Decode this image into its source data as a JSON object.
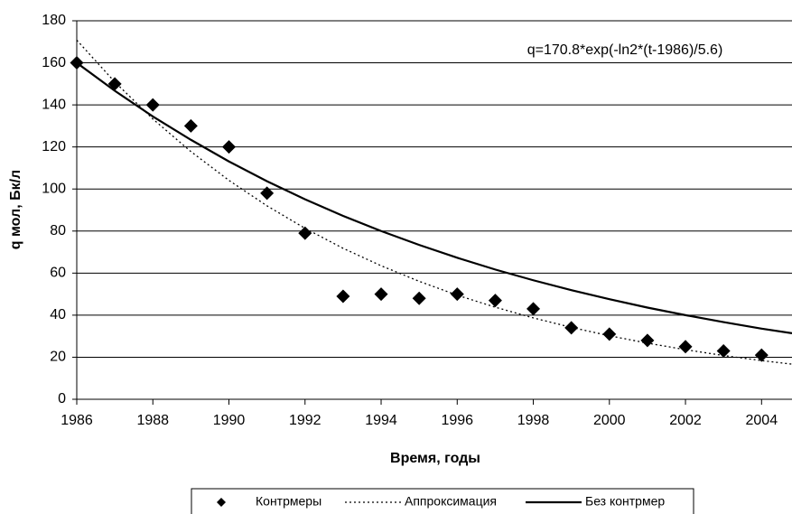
{
  "chart_data": {
    "type": "line",
    "annotation": "q=170.8*exp(-ln2*(t-1986)/5.6)",
    "x_label": "Время, годы",
    "y_label": "q мол, Бк/л",
    "xlim": [
      1986,
      2004.8
    ],
    "ylim": [
      0,
      180
    ],
    "xticks": [
      1986,
      1988,
      1990,
      1992,
      1994,
      1996,
      1998,
      2000,
      2002,
      2004
    ],
    "yticks": [
      0,
      20,
      40,
      60,
      80,
      100,
      120,
      140,
      160,
      180
    ],
    "grid": true,
    "legend": "bottom",
    "series": [
      {
        "name": "Контрмеры",
        "color": "#000000",
        "style": "marker",
        "x": [
          1986,
          1987,
          1988,
          1989,
          1990,
          1991,
          1992,
          1993,
          1994,
          1995,
          1996,
          1997,
          1998,
          1999,
          2000,
          2001,
          2002,
          2003,
          2004
        ],
        "values": [
          160,
          150,
          140,
          130,
          120,
          98,
          79,
          49,
          50,
          48,
          50,
          47,
          43,
          34,
          31,
          28,
          25,
          23,
          21
        ]
      },
      {
        "name": "Аппроксимация",
        "color": "#000000",
        "style": "dotted",
        "x": [
          1986,
          1987,
          1988,
          1989,
          1990,
          1991,
          1992,
          1993,
          1994,
          1995,
          1996,
          1997,
          1998,
          1999,
          2000,
          2001,
          2002,
          2003,
          2004,
          2004.8
        ],
        "values": [
          170.8,
          150.9,
          133.3,
          117.8,
          104.1,
          92.0,
          81.3,
          71.8,
          63.5,
          56.1,
          49.5,
          43.8,
          38.7,
          34.2,
          30.2,
          26.7,
          23.6,
          20.8,
          18.4,
          16.7
        ]
      },
      {
        "name": "Без контрмер",
        "color": "#000000",
        "style": "solid",
        "x": [
          1986,
          1987,
          1988,
          1989,
          1990,
          1991,
          1992,
          1993,
          1994,
          1995,
          1996,
          1997,
          1998,
          1999,
          2000,
          2001,
          2002,
          2003,
          2004,
          2004.8
        ],
        "values": [
          160,
          146.7,
          134.5,
          123.4,
          113.1,
          103.7,
          95.1,
          87.2,
          80,
          73.4,
          67.3,
          61.7,
          56.6,
          51.9,
          47.6,
          43.6,
          40,
          36.7,
          33.6,
          31.4
        ]
      }
    ]
  }
}
